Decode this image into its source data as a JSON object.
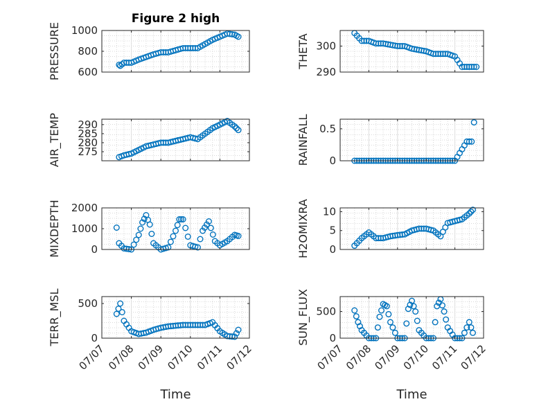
{
  "chart_data": [
    {
      "type": "scatter",
      "title": "Figure 2 high",
      "ylabel": "PRESSURE",
      "xlim": [
        "07/07",
        "07/12"
      ],
      "ylim": [
        600,
        1000
      ],
      "yticks": [
        "600",
        "800",
        "1000"
      ],
      "grid": true,
      "series": [
        {
          "x": [
            "07/07 14:00",
            "07/07 15:00",
            "07/07 18:00",
            "07/08 00:00",
            "07/08 06:00",
            "07/08 12:00",
            "07/08 18:00",
            "07/09 00:00",
            "07/09 06:00",
            "07/09 12:00",
            "07/09 18:00",
            "07/10 00:00",
            "07/10 06:00",
            "07/10 12:00",
            "07/10 18:00",
            "07/11 00:00",
            "07/11 06:00",
            "07/11 12:00",
            "07/11 15:00"
          ],
          "y": [
            670,
            660,
            690,
            690,
            720,
            745,
            770,
            790,
            790,
            810,
            830,
            830,
            830,
            870,
            910,
            940,
            970,
            960,
            940
          ]
        }
      ]
    },
    {
      "type": "scatter",
      "ylabel": "THETA",
      "xlim": [
        "07/07",
        "07/12"
      ],
      "ylim": [
        290,
        306
      ],
      "yticks": [
        "290",
        "300"
      ],
      "grid": true,
      "series": [
        {
          "x": [
            "07/07 12:00",
            "07/07 14:00",
            "07/07 18:00",
            "07/08 00:00",
            "07/08 06:00",
            "07/08 12:00",
            "07/09 00:00",
            "07/09 06:00",
            "07/09 12:00",
            "07/10 00:00",
            "07/10 06:00",
            "07/10 12:00",
            "07/10 18:00",
            "07/11 00:00",
            "07/11 06:00",
            "07/11 12:00",
            "07/11 18:00"
          ],
          "y": [
            305,
            304,
            302,
            302,
            301,
            301,
            300,
            300,
            299,
            298,
            297,
            297,
            297,
            296,
            292,
            292,
            292
          ]
        }
      ]
    },
    {
      "type": "scatter",
      "ylabel": "AIR_TEMP",
      "xlim": [
        "07/07",
        "07/12"
      ],
      "ylim": [
        270,
        293
      ],
      "yticks": [
        "275",
        "280",
        "285",
        "290"
      ],
      "grid": true,
      "series": [
        {
          "x": [
            "07/07 14:00",
            "07/07 18:00",
            "07/08 00:00",
            "07/08 06:00",
            "07/08 12:00",
            "07/08 18:00",
            "07/09 00:00",
            "07/09 06:00",
            "07/09 12:00",
            "07/09 18:00",
            "07/10 00:00",
            "07/10 06:00",
            "07/10 12:00",
            "07/10 18:00",
            "07/11 00:00",
            "07/11 06:00",
            "07/11 12:00",
            "07/11 15:00"
          ],
          "y": [
            272,
            273,
            274,
            276,
            278,
            279,
            280,
            280,
            281,
            282,
            283,
            282,
            285,
            288,
            290,
            292,
            289,
            287
          ]
        }
      ]
    },
    {
      "type": "scatter",
      "ylabel": "RAINFALL",
      "xlim": [
        "07/07",
        "07/12"
      ],
      "ylim": [
        0,
        0.65
      ],
      "yticks": [
        "0",
        "0.5"
      ],
      "grid": true,
      "series": [
        {
          "x": [
            "07/07 12:00",
            "07/08 00:00",
            "07/08 12:00",
            "07/09 00:00",
            "07/09 12:00",
            "07/10 00:00",
            "07/10 12:00",
            "07/11 00:00",
            "07/11 10:00",
            "07/11 14:00",
            "07/11 16:00"
          ],
          "y": [
            0,
            0,
            0,
            0,
            0,
            0,
            0,
            0,
            0.3,
            0.3,
            0.6
          ]
        }
      ]
    },
    {
      "type": "scatter",
      "ylabel": "MIXDEPTH",
      "xlim": [
        "07/07",
        "07/12"
      ],
      "ylim": [
        0,
        2000
      ],
      "yticks": [
        "0",
        "1000",
        "2000"
      ],
      "grid": true,
      "series": [
        {
          "x": [
            "07/07 12:00",
            "07/07 14:00",
            "07/07 18:00",
            "07/08 00:00",
            "07/08 06:00",
            "07/08 09:00",
            "07/08 12:00",
            "07/08 15:00",
            "07/08 18:00",
            "07/09 00:00",
            "07/09 06:00",
            "07/09 12:00",
            "07/09 15:00",
            "07/09 18:00",
            "07/10 00:00",
            "07/10 06:00",
            "07/10 10:00",
            "07/10 15:00",
            "07/10 20:00",
            "07/11 00:00",
            "07/11 06:00",
            "07/11 12:00",
            "07/11 15:00"
          ],
          "y": [
            1050,
            300,
            50,
            0,
            700,
            1300,
            1650,
            1200,
            300,
            0,
            100,
            900,
            1450,
            1450,
            200,
            100,
            900,
            1350,
            400,
            200,
            400,
            700,
            650
          ]
        }
      ]
    },
    {
      "type": "scatter",
      "ylabel": "H2OMIXRA",
      "xlim": [
        "07/07",
        "07/12"
      ],
      "ylim": [
        0,
        11
      ],
      "yticks": [
        "0",
        "5",
        "10"
      ],
      "grid": true,
      "series": [
        {
          "x": [
            "07/07 12:00",
            "07/07 18:00",
            "07/08 00:00",
            "07/08 06:00",
            "07/08 12:00",
            "07/08 18:00",
            "07/09 00:00",
            "07/09 06:00",
            "07/09 12:00",
            "07/09 18:00",
            "07/10 00:00",
            "07/10 06:00",
            "07/10 12:00",
            "07/10 18:00",
            "07/11 00:00",
            "07/11 06:00",
            "07/11 12:00",
            "07/11 15:00"
          ],
          "y": [
            1,
            3,
            4.5,
            3,
            3,
            3.5,
            3.8,
            4,
            5,
            5.5,
            5.5,
            5,
            3.5,
            7,
            7.5,
            8,
            9.5,
            10.5
          ]
        }
      ]
    },
    {
      "type": "scatter",
      "ylabel": "TERR_MSL",
      "xlim": [
        "07/07",
        "07/12"
      ],
      "ylim": [
        0,
        600
      ],
      "yticks": [
        "0",
        "500"
      ],
      "grid": true,
      "series": [
        {
          "x": [
            "07/07 12:00",
            "07/07 15:00",
            "07/07 18:00",
            "07/08 00:00",
            "07/08 06:00",
            "07/08 12:00",
            "07/08 18:00",
            "07/09 00:00",
            "07/09 06:00",
            "07/09 12:00",
            "07/09 18:00",
            "07/10 00:00",
            "07/10 06:00",
            "07/10 12:00",
            "07/10 18:00",
            "07/11 00:00",
            "07/11 06:00",
            "07/11 12:00",
            "07/11 15:00"
          ],
          "y": [
            350,
            500,
            250,
            100,
            60,
            80,
            120,
            150,
            170,
            180,
            190,
            190,
            190,
            190,
            230,
            100,
            30,
            20,
            120
          ]
        }
      ]
    },
    {
      "type": "scatter",
      "ylabel": "SUN_FLUX",
      "xlim": [
        "07/07",
        "07/12"
      ],
      "ylim": [
        0,
        780
      ],
      "yticks": [
        "0",
        "500"
      ],
      "grid": true,
      "series": [
        {
          "x": [
            "07/07 12:00",
            "07/07 15:00",
            "07/07 18:00",
            "07/08 00:00",
            "07/08 06:00",
            "07/08 09:00",
            "07/08 12:00",
            "07/08 15:00",
            "07/08 18:00",
            "07/09 00:00",
            "07/09 06:00",
            "07/09 09:00",
            "07/09 12:00",
            "07/09 15:00",
            "07/09 18:00",
            "07/10 00:00",
            "07/10 06:00",
            "07/10 09:00",
            "07/10 12:00",
            "07/10 15:00",
            "07/10 18:00",
            "07/11 00:00",
            "07/11 06:00",
            "07/11 12:00",
            "07/11 15:00"
          ],
          "y": [
            520,
            300,
            150,
            0,
            0,
            400,
            640,
            600,
            300,
            0,
            0,
            550,
            700,
            500,
            150,
            0,
            0,
            600,
            730,
            500,
            200,
            0,
            0,
            300,
            100
          ]
        }
      ]
    }
  ],
  "x_ticks": [
    "07/07",
    "07/08",
    "07/09",
    "07/10",
    "07/11",
    "07/12"
  ],
  "x_axis_label": "Time",
  "marker_color": "#0072BD"
}
